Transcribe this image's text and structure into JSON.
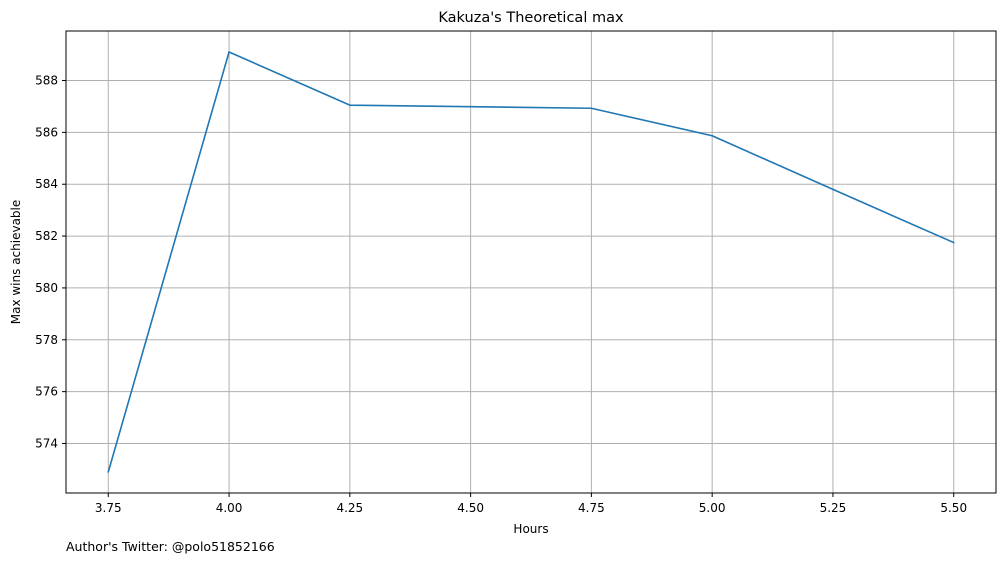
{
  "chart_data": {
    "type": "line",
    "title": "Kakuza's Theoretical max",
    "xlabel": "Hours",
    "ylabel": "Max wins achievable",
    "footnote": "Author's Twitter: @polo51852166",
    "x": [
      3.75,
      4.0,
      4.25,
      4.5,
      4.75,
      5.0,
      5.25,
      5.5
    ],
    "series": [
      {
        "values": [
          572.9,
          589.1,
          587.05,
          586.99,
          586.93,
          585.87,
          583.8,
          581.75
        ],
        "color": "#1f77b4"
      }
    ],
    "xticks": [
      "3.75",
      "4.00",
      "4.25",
      "4.50",
      "4.75",
      "5.00",
      "5.25",
      "5.50"
    ],
    "yticks": [
      "574",
      "576",
      "578",
      "580",
      "582",
      "584",
      "586",
      "588"
    ],
    "xlim": [
      3.6625,
      5.5875
    ],
    "ylim": [
      572.09,
      589.91
    ],
    "grid": true
  }
}
